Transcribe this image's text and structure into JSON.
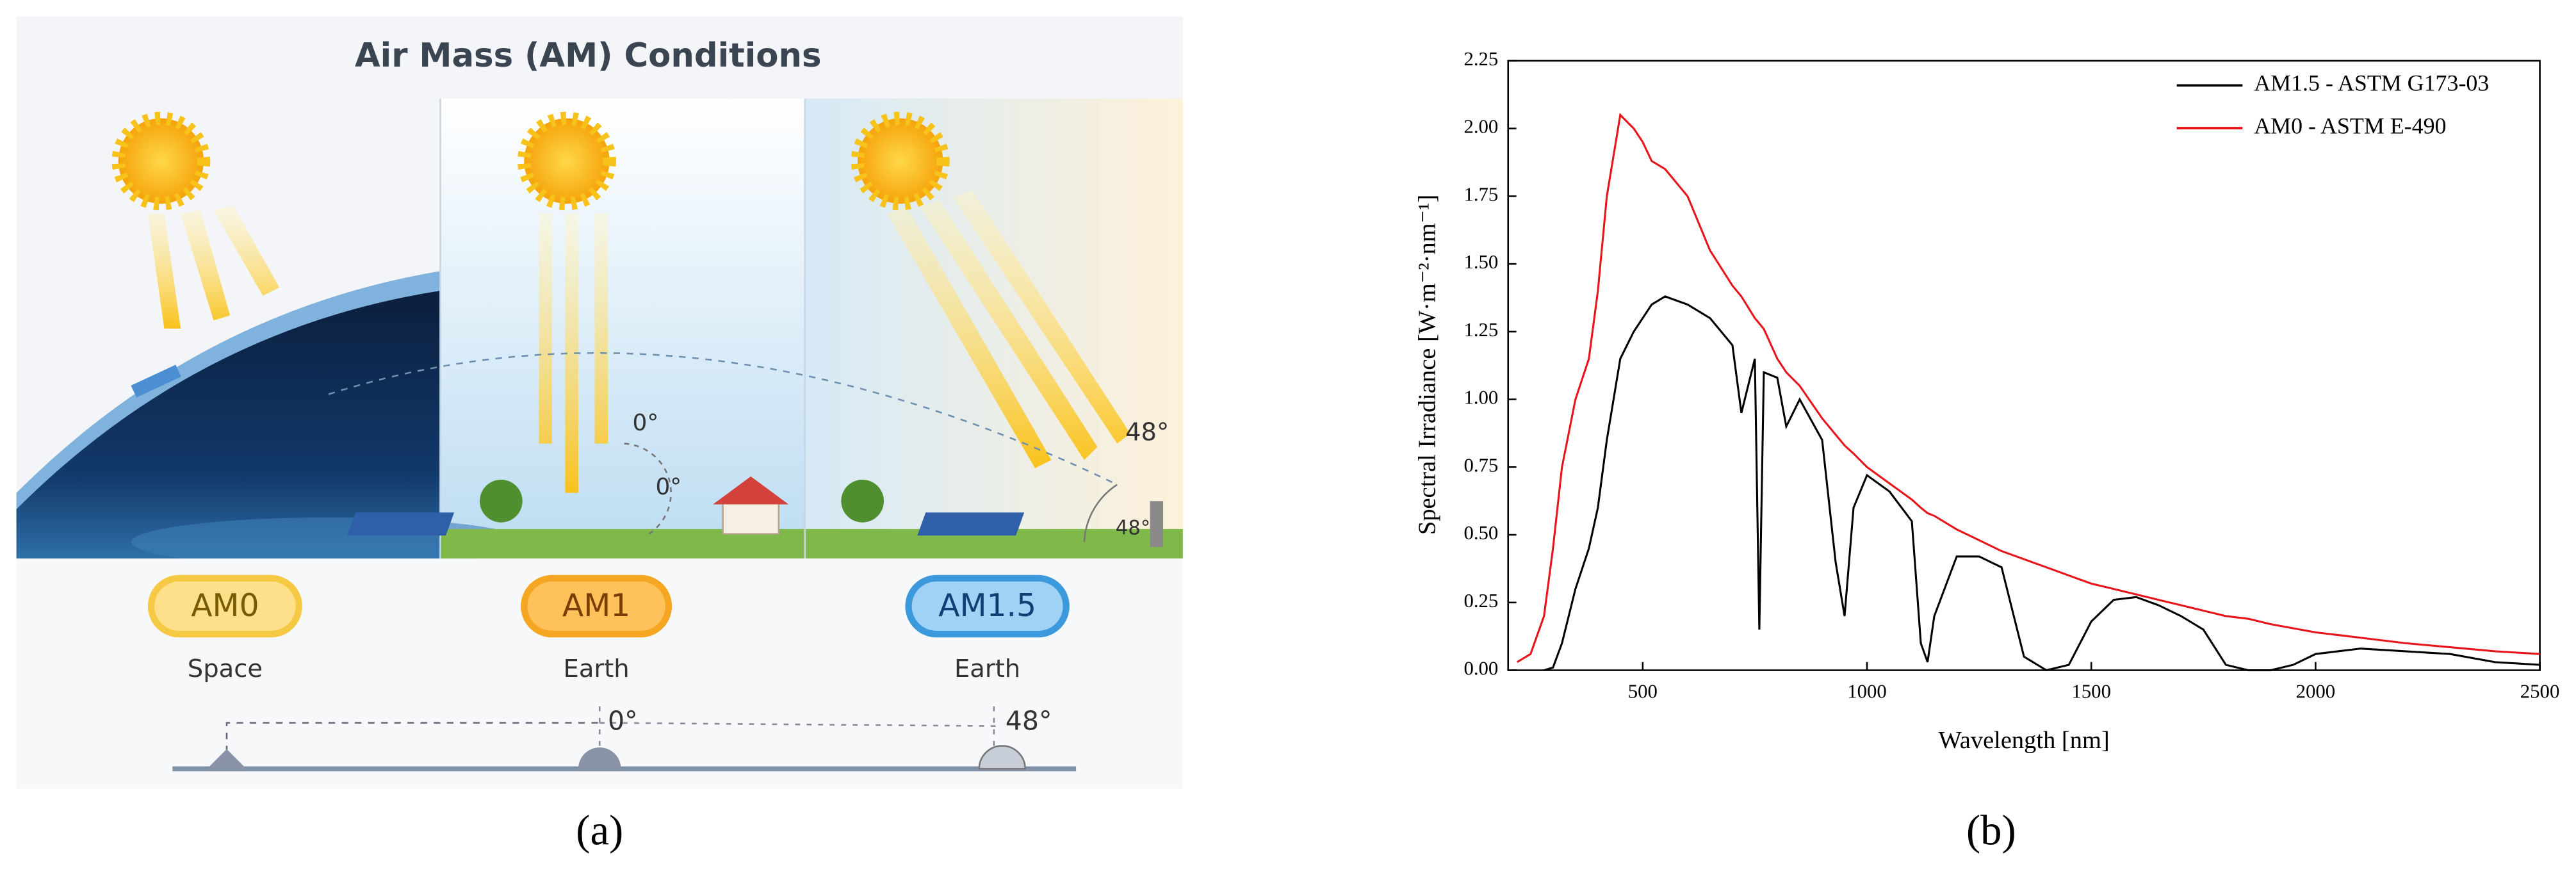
{
  "illustration": {
    "title": "Air Mass (AM) Conditions",
    "badges": [
      "AM0",
      "AM1",
      "AM1.5"
    ],
    "places": [
      "Space",
      "Earth",
      "Earth"
    ],
    "angle_labels": [
      "0°",
      "0°",
      "48°",
      "48°"
    ],
    "baseline_labels": [
      "0°",
      "48°"
    ]
  },
  "panel_labels": [
    "(a)",
    "(b)"
  ],
  "chart_data": {
    "type": "line",
    "x_label": "Wavelength [nm]",
    "y_label": "Spectral Irradiance [W·m⁻²·nm⁻¹]",
    "xlim": [
      200,
      2500
    ],
    "ylim": [
      0,
      2.25
    ],
    "xticks": [
      500,
      1000,
      1500,
      2000,
      2500
    ],
    "yticks": [
      {
        "value": 0,
        "label": "0.00"
      },
      {
        "value": 0.25,
        "label": "0.25"
      },
      {
        "value": 0.5,
        "label": "0.50"
      },
      {
        "value": 0.75,
        "label": "0.75"
      },
      {
        "value": 1,
        "label": "1.00"
      },
      {
        "value": 1.25,
        "label": "1.25"
      },
      {
        "value": 1.5,
        "label": "1.50"
      },
      {
        "value": 1.75,
        "label": "1.75"
      },
      {
        "value": 2,
        "label": "2.00"
      },
      {
        "value": 2.25,
        "label": "2.25"
      }
    ],
    "legend": "upper right",
    "x": [
      220,
      250,
      280,
      300,
      320,
      350,
      380,
      400,
      420,
      450,
      480,
      500,
      520,
      550,
      600,
      650,
      700,
      720,
      750,
      760,
      770,
      800,
      820,
      850,
      900,
      930,
      950,
      970,
      1000,
      1050,
      1100,
      1120,
      1135,
      1150,
      1200,
      1250,
      1300,
      1350,
      1400,
      1450,
      1500,
      1550,
      1600,
      1650,
      1700,
      1750,
      1800,
      1850,
      1900,
      1950,
      2000,
      2050,
      2100,
      2200,
      2300,
      2400,
      2500
    ],
    "series": [
      {
        "name": "AM1.5 - ASTM G173-03",
        "color": "#000000",
        "values": [
          null,
          null,
          0,
          0.01,
          0.1,
          0.3,
          0.45,
          0.6,
          0.85,
          1.15,
          1.25,
          1.3,
          1.35,
          1.38,
          1.35,
          1.3,
          1.2,
          0.95,
          1.15,
          0.15,
          1.1,
          1.08,
          0.9,
          1.0,
          0.85,
          0.4,
          0.2,
          0.6,
          0.72,
          0.66,
          0.55,
          0.1,
          0.03,
          0.2,
          0.42,
          0.42,
          0.38,
          0.05,
          0,
          0.02,
          0.18,
          0.26,
          0.27,
          0.24,
          0.2,
          0.15,
          0.02,
          0,
          0,
          0.02,
          0.06,
          0.07,
          0.08,
          0.07,
          0.06,
          0.03,
          0.02
        ]
      },
      {
        "name": "AM0 - ASTM E-490",
        "color": "#e8141b",
        "values": [
          0.03,
          0.06,
          0.2,
          0.45,
          0.75,
          1.0,
          1.15,
          1.4,
          1.75,
          2.05,
          2.0,
          1.95,
          1.88,
          1.85,
          1.75,
          1.55,
          1.42,
          1.38,
          1.3,
          1.28,
          1.26,
          1.15,
          1.1,
          1.05,
          0.93,
          0.87,
          0.83,
          0.8,
          0.75,
          0.69,
          0.63,
          0.6,
          0.58,
          0.57,
          0.52,
          0.48,
          0.44,
          0.41,
          0.38,
          0.35,
          0.32,
          0.3,
          0.28,
          0.26,
          0.24,
          0.22,
          0.2,
          0.19,
          0.17,
          0.155,
          0.14,
          0.13,
          0.12,
          0.1,
          0.085,
          0.07,
          0.06
        ]
      }
    ]
  }
}
